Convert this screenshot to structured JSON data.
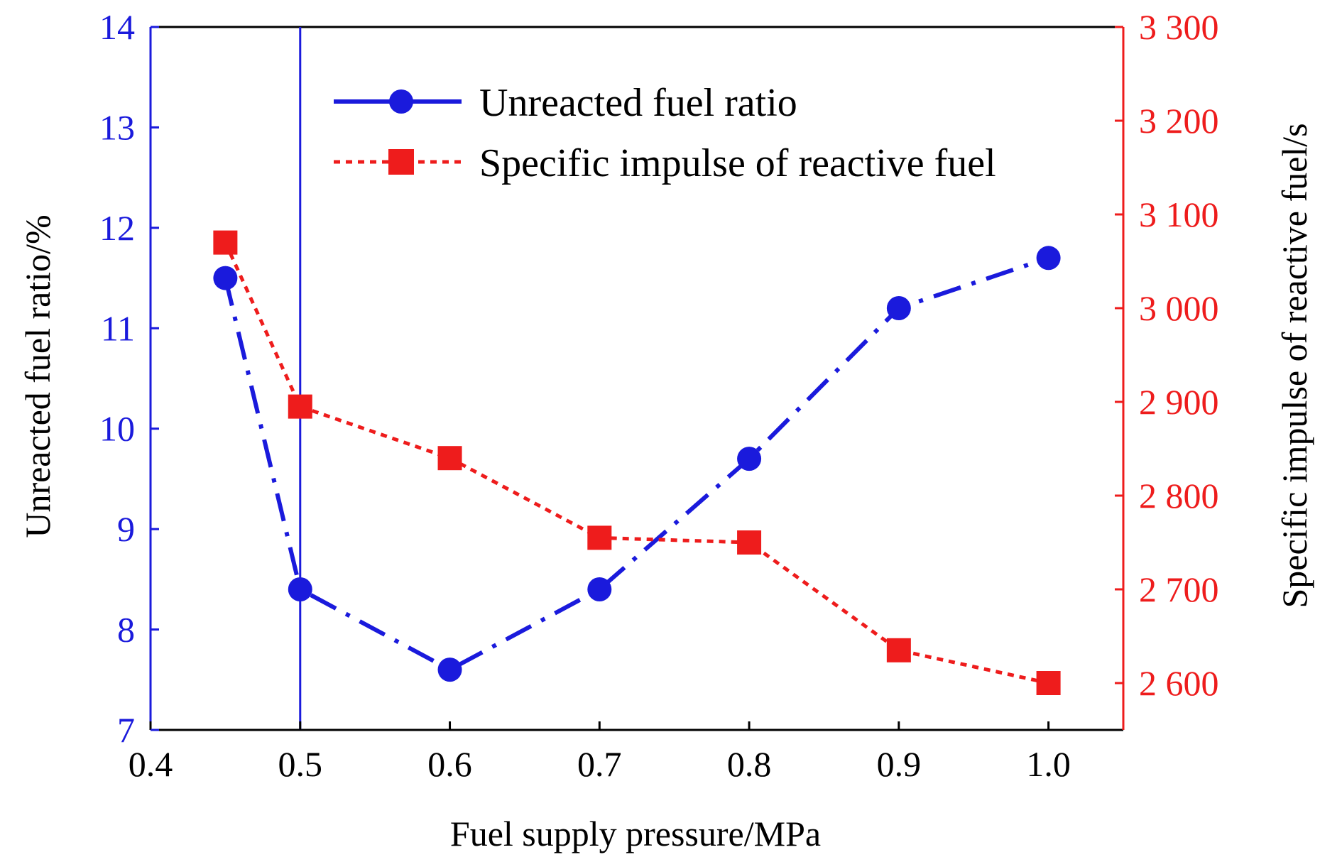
{
  "chart_data": {
    "type": "line",
    "xlabel": "Fuel supply pressure/MPa",
    "ylabel_left": "Unreacted fuel ratio/%",
    "ylabel_right": "Specific impulse of reactive fuel/s",
    "xlim": [
      0.4,
      1.05
    ],
    "ylim_left": [
      7,
      14
    ],
    "ylim_right": [
      2550,
      3300
    ],
    "x_ticks": [
      "0.4",
      "0.5",
      "0.6",
      "0.7",
      "0.8",
      "0.9",
      "1.0"
    ],
    "y_left_ticks": [
      "7",
      "8",
      "9",
      "10",
      "11",
      "12",
      "13",
      "14"
    ],
    "y_right_ticks": [
      "2 600",
      "2 700",
      "2 800",
      "2 900",
      "3 000",
      "3 100",
      "3 200",
      "3 300"
    ],
    "reference_line_x": 0.5,
    "legend_position": "top-center",
    "series": [
      {
        "name": "Unreacted fuel ratio",
        "axis": "left",
        "color": "#1a1adc",
        "marker": "circle",
        "line_style": "dash-dot",
        "x": [
          0.45,
          0.5,
          0.6,
          0.7,
          0.8,
          0.9,
          1.0
        ],
        "y": [
          11.5,
          8.4,
          7.6,
          8.4,
          9.7,
          11.2,
          11.7
        ]
      },
      {
        "name": "Specific impulse of reactive fuel",
        "axis": "right",
        "color": "#ee1c1c",
        "marker": "square",
        "line_style": "dotted",
        "x": [
          0.45,
          0.5,
          0.6,
          0.7,
          0.8,
          0.9,
          1.0
        ],
        "y": [
          3070,
          2895,
          2840,
          2755,
          2750,
          2635,
          2600
        ]
      }
    ]
  }
}
